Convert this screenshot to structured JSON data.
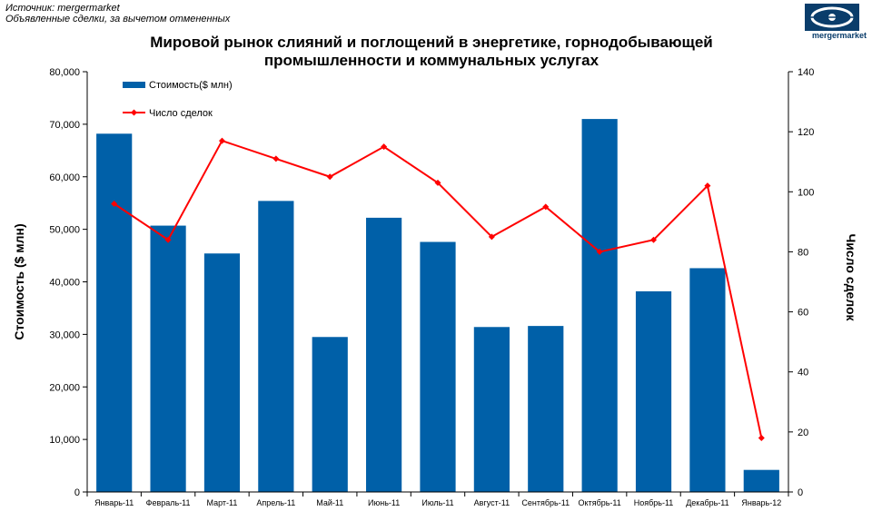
{
  "header": {
    "source_line": "Источник: mergermarket",
    "note_line": "Объявленные сделки, за вычетом отмененных",
    "logo_text": "mergermarket"
  },
  "chart_data": {
    "type": "bar",
    "title_line1": "Мировой рынок слияний и поглощений в энергетике, горнодобывающей",
    "title_line2": "промышленности и коммунальных услугах",
    "categories": [
      "Январь-11",
      "Февраль-11",
      "Март-11",
      "Апрель-11",
      "Май-11",
      "Июнь-11",
      "Июль-11",
      "Август-11",
      "Сентябрь-11",
      "Октябрь-11",
      "Ноябрь-11",
      "Декабрь-11",
      "Январь-12"
    ],
    "series": [
      {
        "name": "Стоимость($ млн)",
        "type": "bar",
        "axis": "left",
        "color": "#0060a8",
        "values": [
          68200,
          50700,
          45400,
          55400,
          29500,
          52200,
          47600,
          31400,
          31600,
          71000,
          38200,
          42600,
          4200
        ]
      },
      {
        "name": "Число сделок",
        "type": "line",
        "axis": "right",
        "color": "#ff0000",
        "values": [
          96,
          84,
          117,
          111,
          105,
          115,
          103,
          85,
          95,
          80,
          84,
          102,
          18
        ]
      }
    ],
    "ylabel_left": "Стоимость  ($ млн)",
    "ylabel_right": "Число сделок",
    "ylim_left": [
      0,
      80000
    ],
    "ylim_right": [
      0,
      140
    ],
    "yticks_left": [
      "0",
      "10,000",
      "20,000",
      "30,000",
      "40,000",
      "50,000",
      "60,000",
      "70,000",
      "80,000"
    ],
    "yticks_right": [
      "0",
      "20",
      "40",
      "60",
      "80",
      "100",
      "120",
      "140"
    ],
    "grid": false,
    "legend_position": "top-left"
  }
}
